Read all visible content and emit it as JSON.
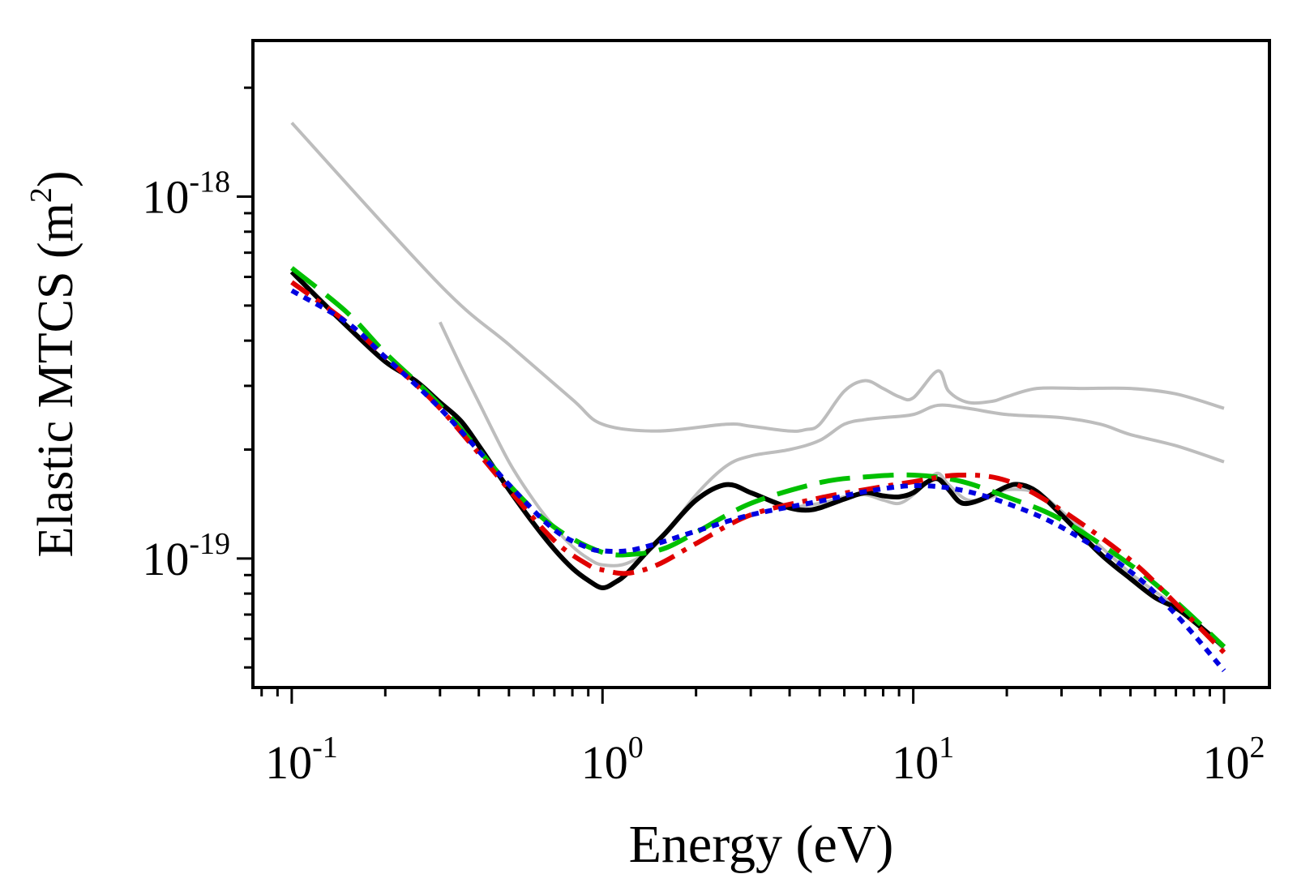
{
  "chart_data": {
    "type": "line",
    "xlabel": "Energy (eV)",
    "ylabel_main": "Elastic MTCS (m",
    "ylabel_sup": "2",
    "ylabel_close": ")",
    "x_scale": "log",
    "y_scale": "log",
    "xlim": [
      0.075,
      140
    ],
    "ylim": [
      4.4e-20,
      2.7e-18
    ],
    "grid": false,
    "legend": "none",
    "x_ticks": [
      {
        "value": 0.1,
        "base": "10",
        "exp": "-1"
      },
      {
        "value": 1,
        "base": "10",
        "exp": "0"
      },
      {
        "value": 10,
        "base": "10",
        "exp": "1"
      },
      {
        "value": 100,
        "base": "10",
        "exp": "2"
      }
    ],
    "y_ticks": [
      {
        "value": 1e-19,
        "base": "10",
        "exp": "-19"
      },
      {
        "value": 1e-18,
        "base": "10",
        "exp": "-18"
      }
    ],
    "series": [
      {
        "color": "#bdbdbd",
        "dash": "solid",
        "x": [
          0.1,
          0.3,
          0.5,
          0.8,
          1.0,
          1.5,
          2.5,
          3.0,
          4.0,
          4.5,
          5.0,
          6.0,
          7.0,
          8.0,
          9.0,
          10.0,
          12.0,
          13.0,
          15.0,
          18.0,
          20.0,
          25.0,
          35.0,
          50.0,
          70.0,
          100.0
        ],
        "y": [
          1.6e-18,
          5.7e-19,
          3.9e-19,
          2.75e-19,
          2.35e-19,
          2.25e-19,
          2.35e-19,
          2.32e-19,
          2.25e-19,
          2.27e-19,
          2.35e-19,
          2.9e-19,
          3.1e-19,
          2.95e-19,
          2.8e-19,
          2.78e-19,
          3.3e-19,
          2.9e-19,
          2.7e-19,
          2.72e-19,
          2.8e-19,
          2.95e-19,
          2.95e-19,
          2.95e-19,
          2.85e-19,
          2.6e-19
        ]
      },
      {
        "color": "#bdbdbd",
        "dash": "solid",
        "x": [
          0.3,
          0.35,
          0.4,
          0.5,
          0.6,
          0.7,
          0.8,
          0.9,
          1.0,
          1.2,
          1.5,
          2.0,
          2.5,
          3.0,
          4.0,
          5.0,
          6.0,
          7.0,
          8.0,
          10.0,
          12.0,
          15.0,
          20.0,
          30.0,
          40.0,
          50.0,
          70.0,
          100.0
        ],
        "y": [
          4.5e-19,
          3.4e-19,
          2.7e-19,
          1.85e-19,
          1.45e-19,
          1.22e-19,
          1.08e-19,
          1e-19,
          9.6e-20,
          9.7e-20,
          1.1e-19,
          1.5e-19,
          1.8e-19,
          1.92e-19,
          2e-19,
          2.12e-19,
          2.35e-19,
          2.42e-19,
          2.45e-19,
          2.5e-19,
          2.65e-19,
          2.6e-19,
          2.5e-19,
          2.45e-19,
          2.35e-19,
          2.2e-19,
          2.05e-19,
          1.85e-19
        ]
      },
      {
        "color": "#bdbdbd",
        "dash": "solid",
        "x": [
          4.0,
          5.0,
          6.0,
          7.0,
          8.0,
          9.0,
          10.0,
          11.0,
          12.0,
          13.0,
          15.0,
          18.0,
          20.0,
          25.0,
          30.0,
          40.0,
          50.0,
          60.0,
          70.0,
          80.0,
          100.0
        ],
        "y": [
          1.38e-19,
          1.42e-19,
          1.48e-19,
          1.5e-19,
          1.45e-19,
          1.42e-19,
          1.5e-19,
          1.62e-19,
          1.72e-19,
          1.6e-19,
          1.45e-19,
          1.48e-19,
          1.55e-19,
          1.52e-19,
          1.35e-19,
          1.08e-19,
          9.1e-20,
          8.1e-20,
          7.4e-20,
          6.8e-20,
          5.6e-20
        ]
      },
      {
        "color": "#000000",
        "dash": "solid",
        "x": [
          0.1,
          0.12,
          0.15,
          0.2,
          0.25,
          0.3,
          0.35,
          0.4,
          0.5,
          0.6,
          0.7,
          0.8,
          0.9,
          1.0,
          1.1,
          1.2,
          1.4,
          1.6,
          2.0,
          2.5,
          3.0,
          3.5,
          4.0,
          4.5,
          5.0,
          6.0,
          7.0,
          8.0,
          9.0,
          10.0,
          11.0,
          12.0,
          13.0,
          14.0,
          15.0,
          17.0,
          20.0,
          22.0,
          25.0,
          30.0,
          40.0,
          50.0,
          60.0,
          70.0,
          80.0,
          100.0
        ],
        "y": [
          6.2e-19,
          5.3e-19,
          4.4e-19,
          3.5e-19,
          3.1e-19,
          2.7e-19,
          2.4e-19,
          2.05e-19,
          1.55e-19,
          1.25e-19,
          1.06e-19,
          9.4e-20,
          8.7e-20,
          8.3e-20,
          8.6e-20,
          9.1e-20,
          1.05e-19,
          1.18e-19,
          1.45e-19,
          1.6e-19,
          1.52e-19,
          1.44e-19,
          1.38e-19,
          1.36e-19,
          1.38e-19,
          1.46e-19,
          1.52e-19,
          1.49e-19,
          1.48e-19,
          1.52e-19,
          1.62e-19,
          1.66e-19,
          1.55e-19,
          1.44e-19,
          1.42e-19,
          1.47e-19,
          1.58e-19,
          1.6e-19,
          1.53e-19,
          1.32e-19,
          1.03e-19,
          8.8e-20,
          7.8e-20,
          7.3e-20,
          6.7e-20,
          5.7e-20
        ]
      },
      {
        "color": "#00c000",
        "dash": "long-dash",
        "x": [
          0.1,
          0.15,
          0.2,
          0.3,
          0.5,
          0.7,
          1.0,
          1.3,
          1.6,
          2.0,
          3.0,
          5.0,
          7.0,
          10.0,
          14.0,
          20.0,
          30.0,
          50.0,
          70.0,
          100.0
        ],
        "y": [
          6.35e-19,
          4.8e-19,
          3.7e-19,
          2.65e-19,
          1.6e-19,
          1.22e-19,
          1.04e-19,
          1.03e-19,
          1.07e-19,
          1.18e-19,
          1.42e-19,
          1.62e-19,
          1.68e-19,
          1.7e-19,
          1.64e-19,
          1.48e-19,
          1.28e-19,
          9.6e-20,
          7.6e-20,
          5.7e-20
        ]
      },
      {
        "color": "#e00000",
        "dash": "dash-dot",
        "x": [
          0.1,
          0.15,
          0.2,
          0.3,
          0.5,
          0.7,
          0.9,
          1.0,
          1.2,
          1.5,
          2.0,
          3.0,
          5.0,
          7.0,
          10.0,
          14.0,
          20.0,
          30.0,
          50.0,
          70.0,
          100.0
        ],
        "y": [
          5.8e-19,
          4.5e-19,
          3.6e-19,
          2.6e-19,
          1.55e-19,
          1.12e-19,
          9.6e-20,
          9.3e-20,
          9.1e-20,
          9.6e-20,
          1.1e-19,
          1.32e-19,
          1.47e-19,
          1.55e-19,
          1.63e-19,
          1.7e-19,
          1.64e-19,
          1.36e-19,
          9.9e-20,
          7.5e-20,
          5.5e-20
        ]
      },
      {
        "color": "#0000e0",
        "dash": "dotted",
        "x": [
          0.1,
          0.15,
          0.2,
          0.3,
          0.5,
          0.7,
          0.9,
          1.0,
          1.2,
          1.5,
          2.0,
          3.0,
          5.0,
          7.0,
          10.0,
          14.0,
          20.0,
          30.0,
          50.0,
          70.0,
          100.0
        ],
        "y": [
          5.5e-19,
          4.5e-19,
          3.6e-19,
          2.6e-19,
          1.6e-19,
          1.2e-19,
          1.07e-19,
          1.05e-19,
          1.05e-19,
          1.1e-19,
          1.19e-19,
          1.32e-19,
          1.44e-19,
          1.53e-19,
          1.59e-19,
          1.55e-19,
          1.42e-19,
          1.22e-19,
          9.2e-20,
          7e-20,
          4.9e-20
        ]
      }
    ]
  }
}
